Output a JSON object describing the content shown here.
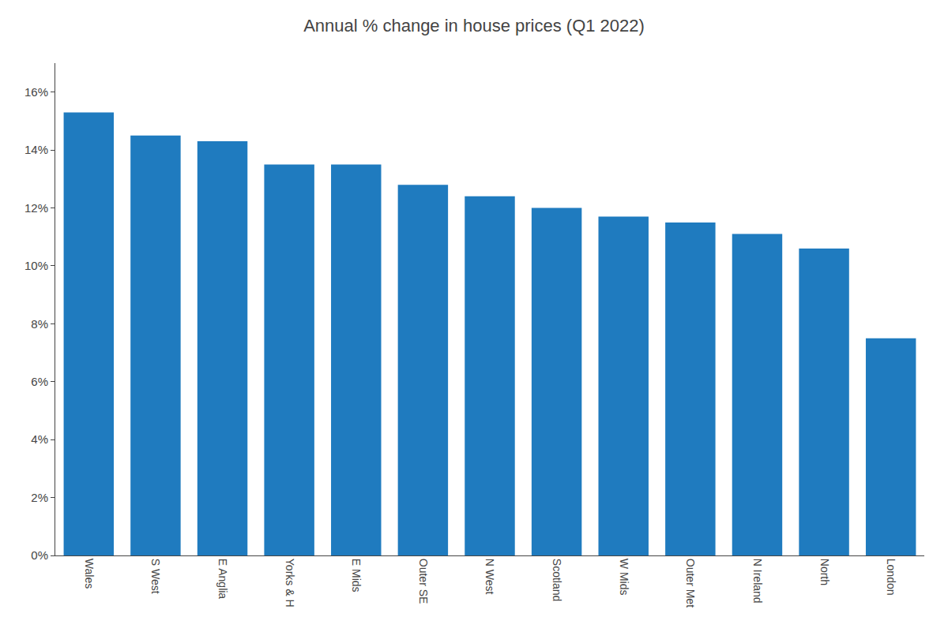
{
  "chart_data": {
    "type": "bar",
    "title": "Annual % change in house prices (Q1 2022)",
    "categories": [
      "Wales",
      "S West",
      "E Anglia",
      "Yorks & H",
      "E Mids",
      "Outer SE",
      "N West",
      "Scotland",
      "W Mids",
      "Outer Met",
      "N Ireland",
      "North",
      "London"
    ],
    "values": [
      15.3,
      14.5,
      14.3,
      13.5,
      13.5,
      12.8,
      12.4,
      12.0,
      11.7,
      11.5,
      11.1,
      10.6,
      7.5
    ],
    "color": "#1f7bbf",
    "ylim": [
      0,
      17
    ],
    "yticks": [
      {
        "value": 0,
        "label": "0%"
      },
      {
        "value": 2,
        "label": "2%"
      },
      {
        "value": 4,
        "label": "4%"
      },
      {
        "value": 6,
        "label": "6%"
      },
      {
        "value": 8,
        "label": "8%"
      },
      {
        "value": 10,
        "label": "10%"
      },
      {
        "value": 12,
        "label": "12%"
      },
      {
        "value": 14,
        "label": "14%"
      },
      {
        "value": 16,
        "label": "16%"
      }
    ],
    "grid": false
  }
}
